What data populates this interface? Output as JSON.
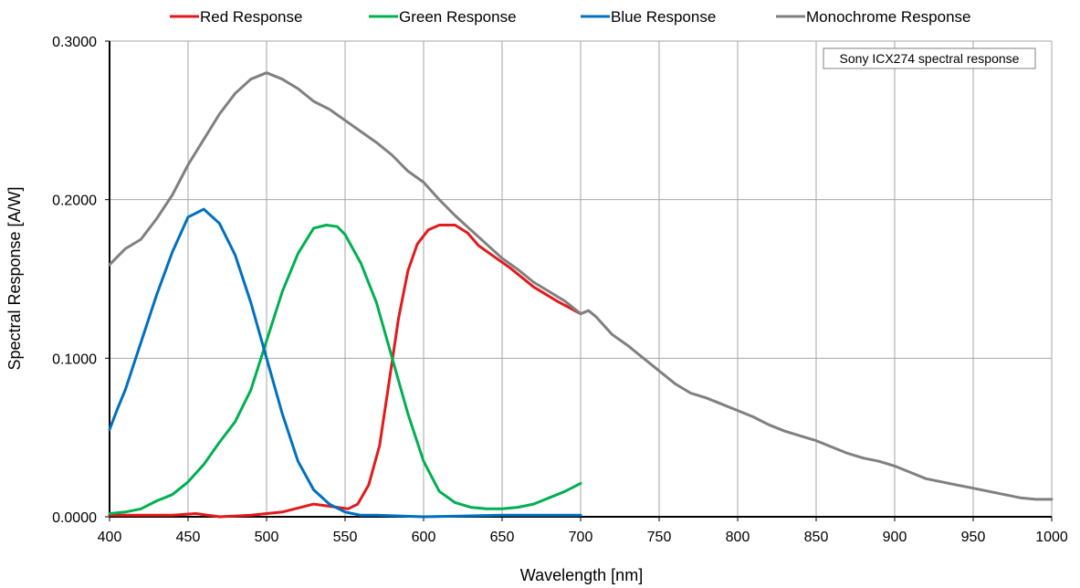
{
  "chart_data": {
    "type": "line",
    "title": "",
    "xlabel": "Wavelength [nm]",
    "ylabel": "Spectral Response [A/W]",
    "xlim": [
      400,
      1000
    ],
    "ylim": [
      0,
      0.3
    ],
    "xticks": [
      "400",
      "450",
      "500",
      "550",
      "600",
      "650",
      "700",
      "750",
      "800",
      "850",
      "900",
      "950",
      "1000"
    ],
    "yticks": [
      "0.0000",
      "0.1000",
      "0.2000",
      "0.3000"
    ],
    "grid": true,
    "legend_position": "top",
    "annotation": "Sony ICX274 spectral response",
    "series": [
      {
        "name": "Red Response",
        "color": "#e31a1c",
        "x": [
          400,
          420,
          440,
          455,
          470,
          490,
          510,
          530,
          545,
          552,
          558,
          565,
          572,
          578,
          584,
          590,
          596,
          603,
          610,
          620,
          628,
          635,
          645,
          655,
          670,
          685,
          700
        ],
        "y": [
          0.001,
          0.001,
          0.001,
          0.002,
          0.0,
          0.001,
          0.003,
          0.008,
          0.006,
          0.005,
          0.008,
          0.02,
          0.045,
          0.085,
          0.125,
          0.155,
          0.172,
          0.181,
          0.184,
          0.184,
          0.179,
          0.171,
          0.164,
          0.157,
          0.145,
          0.136,
          0.128
        ]
      },
      {
        "name": "Green Response",
        "color": "#00b050",
        "x": [
          400,
          410,
          420,
          430,
          440,
          450,
          460,
          470,
          480,
          490,
          500,
          510,
          520,
          530,
          538,
          545,
          550,
          560,
          570,
          580,
          590,
          600,
          610,
          620,
          630,
          640,
          650,
          660,
          670,
          680,
          690,
          700
        ],
        "y": [
          0.002,
          0.003,
          0.005,
          0.01,
          0.014,
          0.022,
          0.033,
          0.047,
          0.06,
          0.08,
          0.111,
          0.142,
          0.166,
          0.182,
          0.184,
          0.183,
          0.178,
          0.16,
          0.135,
          0.1,
          0.065,
          0.035,
          0.016,
          0.009,
          0.006,
          0.005,
          0.005,
          0.006,
          0.008,
          0.012,
          0.016,
          0.021
        ]
      },
      {
        "name": "Blue Response",
        "color": "#0070c0",
        "x": [
          400,
          405,
          410,
          420,
          430,
          440,
          450,
          460,
          470,
          480,
          490,
          500,
          510,
          520,
          530,
          540,
          550,
          560,
          570,
          600,
          650,
          700
        ],
        "y": [
          0.055,
          0.068,
          0.08,
          0.11,
          0.14,
          0.167,
          0.189,
          0.194,
          0.185,
          0.165,
          0.135,
          0.1,
          0.065,
          0.035,
          0.017,
          0.008,
          0.003,
          0.001,
          0.001,
          0.0,
          0.001,
          0.001
        ]
      },
      {
        "name": "Monochrome Response",
        "color": "#808080",
        "x": [
          400,
          410,
          420,
          430,
          440,
          450,
          460,
          470,
          480,
          490,
          500,
          510,
          520,
          530,
          540,
          550,
          560,
          570,
          580,
          590,
          600,
          610,
          620,
          630,
          640,
          650,
          660,
          670,
          680,
          690,
          700,
          705,
          710,
          720,
          730,
          740,
          750,
          760,
          770,
          780,
          790,
          800,
          810,
          820,
          830,
          840,
          850,
          860,
          870,
          880,
          890,
          900,
          910,
          920,
          930,
          940,
          950,
          960,
          970,
          980,
          990,
          1000
        ],
        "y": [
          0.159,
          0.169,
          0.175,
          0.188,
          0.203,
          0.222,
          0.238,
          0.254,
          0.267,
          0.276,
          0.28,
          0.276,
          0.27,
          0.262,
          0.257,
          0.25,
          0.243,
          0.236,
          0.228,
          0.218,
          0.211,
          0.2,
          0.19,
          0.181,
          0.172,
          0.163,
          0.156,
          0.148,
          0.142,
          0.136,
          0.128,
          0.13,
          0.126,
          0.115,
          0.108,
          0.1,
          0.092,
          0.084,
          0.078,
          0.075,
          0.071,
          0.067,
          0.063,
          0.058,
          0.054,
          0.051,
          0.048,
          0.044,
          0.04,
          0.037,
          0.035,
          0.032,
          0.028,
          0.024,
          0.022,
          0.02,
          0.018,
          0.016,
          0.014,
          0.012,
          0.011,
          0.011
        ]
      }
    ]
  }
}
